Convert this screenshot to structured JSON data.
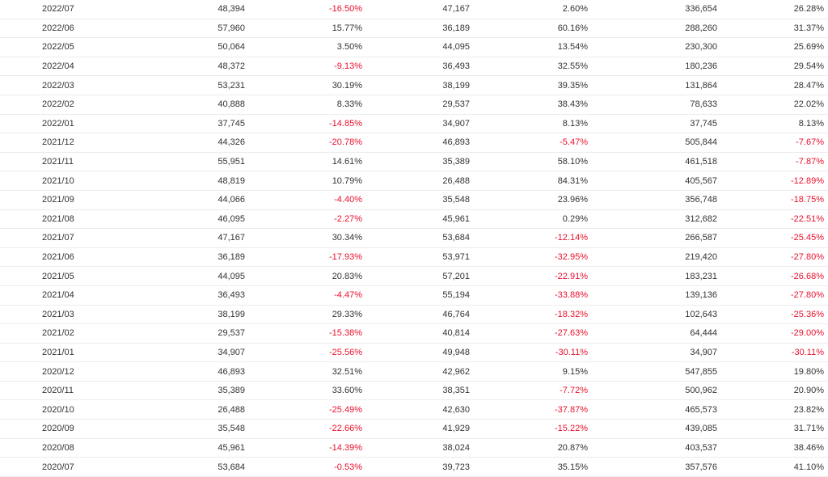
{
  "colors": {
    "negative": "#e8112d",
    "text": "#333333",
    "row_border": "#ececec"
  },
  "rows": [
    [
      "2022/07",
      "48,394",
      "-16.50%",
      "47,167",
      "2.60%",
      "336,654",
      "26.28%"
    ],
    [
      "2022/06",
      "57,960",
      "15.77%",
      "36,189",
      "60.16%",
      "288,260",
      "31.37%"
    ],
    [
      "2022/05",
      "50,064",
      "3.50%",
      "44,095",
      "13.54%",
      "230,300",
      "25.69%"
    ],
    [
      "2022/04",
      "48,372",
      "-9.13%",
      "36,493",
      "32.55%",
      "180,236",
      "29.54%"
    ],
    [
      "2022/03",
      "53,231",
      "30.19%",
      "38,199",
      "39.35%",
      "131,864",
      "28.47%"
    ],
    [
      "2022/02",
      "40,888",
      "8.33%",
      "29,537",
      "38.43%",
      "78,633",
      "22.02%"
    ],
    [
      "2022/01",
      "37,745",
      "-14.85%",
      "34,907",
      "8.13%",
      "37,745",
      "8.13%"
    ],
    [
      "2021/12",
      "44,326",
      "-20.78%",
      "46,893",
      "-5.47%",
      "505,844",
      "-7.67%"
    ],
    [
      "2021/11",
      "55,951",
      "14.61%",
      "35,389",
      "58.10%",
      "461,518",
      "-7.87%"
    ],
    [
      "2021/10",
      "48,819",
      "10.79%",
      "26,488",
      "84.31%",
      "405,567",
      "-12.89%"
    ],
    [
      "2021/09",
      "44,066",
      "-4.40%",
      "35,548",
      "23.96%",
      "356,748",
      "-18.75%"
    ],
    [
      "2021/08",
      "46,095",
      "-2.27%",
      "45,961",
      "0.29%",
      "312,682",
      "-22.51%"
    ],
    [
      "2021/07",
      "47,167",
      "30.34%",
      "53,684",
      "-12.14%",
      "266,587",
      "-25.45%"
    ],
    [
      "2021/06",
      "36,189",
      "-17.93%",
      "53,971",
      "-32.95%",
      "219,420",
      "-27.80%"
    ],
    [
      "2021/05",
      "44,095",
      "20.83%",
      "57,201",
      "-22.91%",
      "183,231",
      "-26.68%"
    ],
    [
      "2021/04",
      "36,493",
      "-4.47%",
      "55,194",
      "-33.88%",
      "139,136",
      "-27.80%"
    ],
    [
      "2021/03",
      "38,199",
      "29.33%",
      "46,764",
      "-18.32%",
      "102,643",
      "-25.36%"
    ],
    [
      "2021/02",
      "29,537",
      "-15.38%",
      "40,814",
      "-27.63%",
      "64,444",
      "-29.00%"
    ],
    [
      "2021/01",
      "34,907",
      "-25.56%",
      "49,948",
      "-30.11%",
      "34,907",
      "-30.11%"
    ],
    [
      "2020/12",
      "46,893",
      "32.51%",
      "42,962",
      "9.15%",
      "547,855",
      "19.80%"
    ],
    [
      "2020/11",
      "35,389",
      "33.60%",
      "38,351",
      "-7.72%",
      "500,962",
      "20.90%"
    ],
    [
      "2020/10",
      "26,488",
      "-25.49%",
      "42,630",
      "-37.87%",
      "465,573",
      "23.82%"
    ],
    [
      "2020/09",
      "35,548",
      "-22.66%",
      "41,929",
      "-15.22%",
      "439,085",
      "31.71%"
    ],
    [
      "2020/08",
      "45,961",
      "-14.39%",
      "38,024",
      "20.87%",
      "403,537",
      "38.46%"
    ],
    [
      "2020/07",
      "53,684",
      "-0.53%",
      "39,723",
      "35.15%",
      "357,576",
      "41.10%"
    ]
  ]
}
